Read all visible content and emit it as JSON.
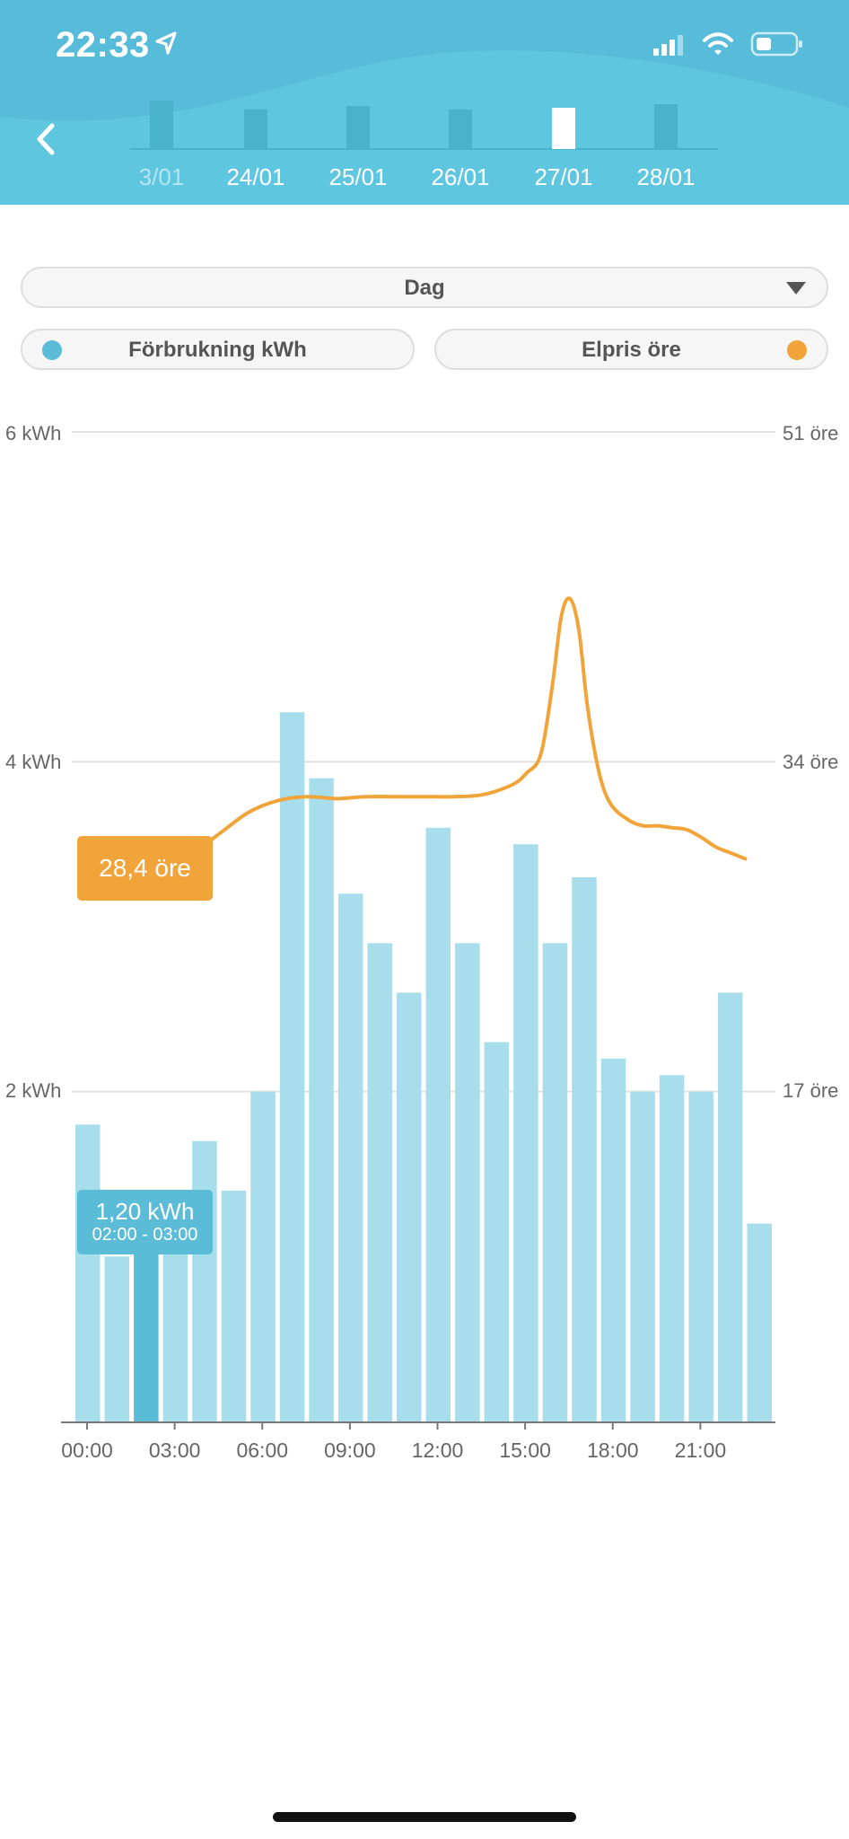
{
  "status_bar": {
    "time": "22:33"
  },
  "date_strip": {
    "days": [
      {
        "label": "3/01",
        "level": 0.54,
        "selected": false
      },
      {
        "label": "24/01",
        "level": 0.44,
        "selected": false
      },
      {
        "label": "25/01",
        "level": 0.48,
        "selected": false
      },
      {
        "label": "26/01",
        "level": 0.44,
        "selected": false
      },
      {
        "label": "27/01",
        "level": 0.46,
        "selected": true
      },
      {
        "label": "28/01",
        "level": 0.5,
        "selected": false
      }
    ]
  },
  "period_select": {
    "value": "Dag"
  },
  "toggles": {
    "consumption": {
      "label": "Förbrukning kWh",
      "color": "#5bbcd8"
    },
    "price": {
      "label": "Elpris öre",
      "color": "#f0a43a"
    }
  },
  "chart_data": {
    "type": "bar",
    "categories": [
      "00:00",
      "01:00",
      "02:00",
      "03:00",
      "04:00",
      "05:00",
      "06:00",
      "07:00",
      "08:00",
      "09:00",
      "10:00",
      "11:00",
      "12:00",
      "13:00",
      "14:00",
      "15:00",
      "16:00",
      "17:00",
      "18:00",
      "19:00",
      "20:00",
      "21:00",
      "22:00",
      "23:00"
    ],
    "x_tick_labels": [
      "00:00",
      "03:00",
      "06:00",
      "09:00",
      "12:00",
      "15:00",
      "18:00",
      "21:00"
    ],
    "series": [
      {
        "name": "Förbrukning kWh",
        "unit": "kWh",
        "color": "#a8deeb",
        "values": [
          1.8,
          1.0,
          1.2,
          1.1,
          1.7,
          1.4,
          2.0,
          4.3,
          3.9,
          3.2,
          2.9,
          2.6,
          3.6,
          2.9,
          2.3,
          3.5,
          2.9,
          3.3,
          2.2,
          2.0,
          2.1,
          2.0,
          2.6,
          1.2
        ],
        "highlight_index": 2,
        "highlight_color": "#5bbcd8"
      },
      {
        "name": "Elpris öre",
        "unit": "öre",
        "color": "#f0a43a",
        "type": "line",
        "x": [
          2.5,
          3,
          4,
          5,
          6,
          7,
          8,
          9,
          10,
          11,
          12,
          13,
          14,
          15,
          15.5,
          16,
          16.4,
          16.7,
          17,
          17.3,
          17.6,
          18,
          18.4,
          19,
          19.5,
          20,
          20.5,
          21,
          21.5,
          22,
          22.5,
          23
        ],
        "values": [
          28.4,
          28.6,
          29.2,
          30.3,
          31.4,
          32.0,
          32.2,
          32.1,
          32.2,
          32.2,
          32.2,
          32.2,
          32.3,
          32.8,
          33.4,
          34.4,
          38.0,
          41.5,
          42.4,
          40.8,
          36.8,
          33.4,
          31.8,
          31.0,
          30.7,
          30.7,
          30.6,
          30.5,
          30.1,
          29.6,
          29.3,
          29.0
        ]
      }
    ],
    "y_left": {
      "ticks": [
        "6 kWh",
        "4 kWh",
        "2 kWh"
      ],
      "ylim": [
        0,
        6
      ]
    },
    "y_right": {
      "ticks": [
        "51 öre",
        "34 öre",
        "17 öre"
      ],
      "ylim": [
        0,
        51
      ]
    },
    "grid": true
  },
  "tooltips": {
    "price": {
      "value": "28,4 öre"
    },
    "consumption": {
      "value": "1,20 kWh",
      "range": "02:00 - 03:00"
    }
  }
}
